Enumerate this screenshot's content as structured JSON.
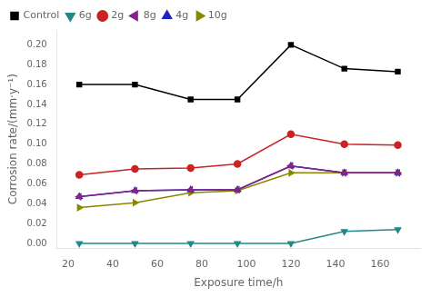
{
  "chart_data": {
    "type": "line",
    "xlabel": "Exposure time/h",
    "ylabel": "Corrosion rate/(mm·y⁻¹)",
    "x": [
      25,
      50,
      75,
      96,
      120,
      144,
      168
    ],
    "series": [
      {
        "name": "Control",
        "color": "#000000",
        "marker": "square",
        "values": [
          0.16,
          0.16,
          0.145,
          0.145,
          0.2,
          0.176,
          0.173
        ]
      },
      {
        "name": "6g",
        "color": "#228888",
        "marker": "triangle-down",
        "values": [
          0.0,
          0.0,
          0.0,
          0.0,
          0.0,
          0.012,
          0.014
        ]
      },
      {
        "name": "2g",
        "color": "#cc2222",
        "marker": "circle",
        "values": [
          0.069,
          0.075,
          0.076,
          0.08,
          0.11,
          0.1,
          0.099
        ]
      },
      {
        "name": "8g",
        "color": "#882288",
        "marker": "triangle-left",
        "values": [
          0.047,
          0.053,
          0.054,
          0.054,
          0.078,
          0.071,
          0.071
        ]
      },
      {
        "name": "4g",
        "color": "#2222bb",
        "marker": "triangle-up",
        "values": [
          0.047,
          0.053,
          0.054,
          0.054,
          0.078,
          0.071,
          0.071
        ]
      },
      {
        "name": "10g",
        "color": "#888800",
        "marker": "triangle-right",
        "values": [
          0.036,
          0.041,
          0.051,
          0.053,
          0.071,
          0.071,
          0.071
        ]
      }
    ],
    "xlim": [
      15,
      178
    ],
    "xticks": [
      20,
      40,
      60,
      80,
      100,
      120,
      140,
      160
    ],
    "ylim": [
      -0.005,
      0.215
    ],
    "yticks": [
      {
        "value": 0,
        "label": "0.00"
      },
      0.02,
      0.04,
      0.06,
      0.08,
      {
        "value": 0.1,
        "label": "0.10"
      },
      0.12,
      0.14,
      0.16,
      0.18,
      {
        "value": 0.2,
        "label": "0.20"
      }
    ],
    "grid": false,
    "legend": "upper left"
  }
}
